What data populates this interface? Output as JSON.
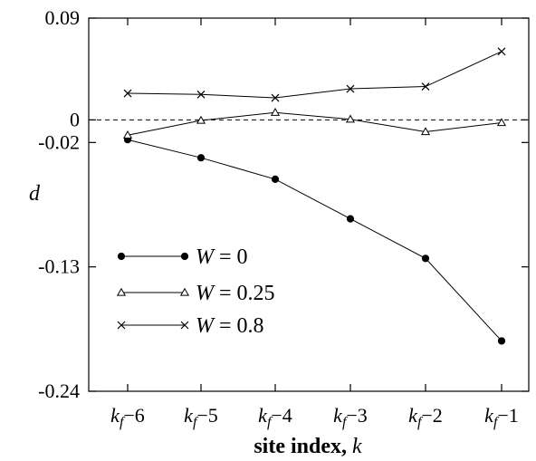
{
  "chart_data": {
    "type": "line",
    "title": "",
    "xlabel": "site index, k",
    "ylabel": "d",
    "categories": [
      "k_f−6",
      "k_f−5",
      "k_f−4",
      "k_f−3",
      "k_f−2",
      "k_f−1"
    ],
    "ylim": [
      -0.24,
      0.09
    ],
    "yticks": [
      {
        "value": 0.09,
        "label": "0.09"
      },
      {
        "value": 0.0,
        "label": "0"
      },
      {
        "value": -0.02,
        "label": "-0.02"
      },
      {
        "value": -0.13,
        "label": "-0.13"
      },
      {
        "value": -0.24,
        "label": "-0.24"
      }
    ],
    "reference_line": {
      "value": 0.0,
      "style": "dashed"
    },
    "legend_position": "lower-left",
    "series": [
      {
        "name": "W = 0",
        "marker": "filled-circle",
        "values": [
          -0.0175,
          -0.0335,
          -0.0525,
          -0.0875,
          -0.1225,
          -0.1955
        ]
      },
      {
        "name": "W = 0.25",
        "marker": "open-triangle",
        "values": [
          -0.0135,
          -0.0005,
          0.0065,
          0.0005,
          -0.0105,
          -0.0025
        ]
      },
      {
        "name": "W = 0.8",
        "marker": "cross",
        "values": [
          0.0235,
          0.0225,
          0.0195,
          0.0275,
          0.0295,
          0.0605
        ]
      }
    ]
  }
}
